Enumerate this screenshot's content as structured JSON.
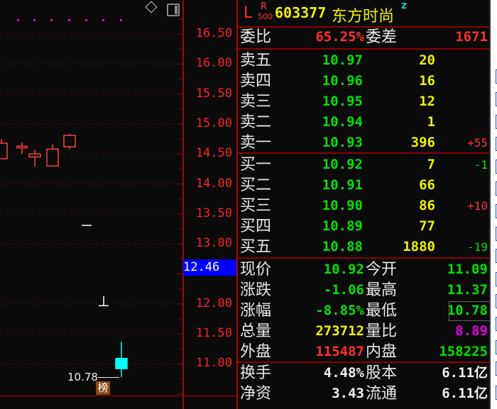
{
  "chart": {
    "y_ticks": [
      "16.50",
      "16.00",
      "15.50",
      "15.00",
      "14.50",
      "14.00",
      "13.50",
      "13.00",
      "12.00",
      "11.50",
      "11.00"
    ],
    "current_price_label": "12.46",
    "low_marker": "10.78",
    "badge": "榜",
    "candles": [
      {
        "open": 14.42,
        "close": 14.68,
        "high": 14.75,
        "low": 14.42,
        "color": "red",
        "hollow": true
      },
      {
        "open": 14.6,
        "close": 14.63,
        "high": 14.69,
        "low": 14.5,
        "color": "red",
        "hollow": true
      },
      {
        "open": 14.45,
        "close": 14.5,
        "high": 14.57,
        "low": 14.29,
        "color": "red",
        "hollow": true
      },
      {
        "open": 14.3,
        "close": 14.58,
        "high": 14.66,
        "low": 14.3,
        "color": "red",
        "hollow": true
      },
      {
        "open": 14.62,
        "close": 14.81,
        "high": 14.84,
        "low": 14.58,
        "color": "red",
        "hollow": true
      },
      {
        "open": 13.31,
        "close": 13.31,
        "high": 13.31,
        "low": 13.31,
        "color": "white"
      },
      {
        "open": 11.97,
        "close": 11.97,
        "high": 12.13,
        "low": 11.97,
        "color": "white"
      },
      {
        "open": 11.09,
        "close": 10.92,
        "high": 11.37,
        "low": 10.78,
        "color": "cyan"
      }
    ],
    "colors": {
      "up": "#ff4040",
      "down": "#00ffff",
      "grid": "#b00000",
      "dots": "#e000e0"
    }
  },
  "header": {
    "l": "L",
    "r": "R",
    "r_sub": "500",
    "code": "603377",
    "name": "东方时尚",
    "mark": "Z"
  },
  "ratio": {
    "label": "委比",
    "value": "65.25%",
    "label2": "委差",
    "value2": "1671"
  },
  "asks": [
    {
      "label": "卖五",
      "price": "10.97",
      "vol": "20",
      "chg": ""
    },
    {
      "label": "卖四",
      "price": "10.96",
      "vol": "16",
      "chg": ""
    },
    {
      "label": "卖三",
      "price": "10.95",
      "vol": "12",
      "chg": ""
    },
    {
      "label": "卖二",
      "price": "10.94",
      "vol": "1",
      "chg": ""
    },
    {
      "label": "卖一",
      "price": "10.93",
      "vol": "396",
      "chg": "+55",
      "chg_color": "r"
    }
  ],
  "bids": [
    {
      "label": "买一",
      "price": "10.92",
      "vol": "7",
      "chg": "-1",
      "chg_color": "g"
    },
    {
      "label": "买二",
      "price": "10.91",
      "vol": "66",
      "chg": ""
    },
    {
      "label": "买三",
      "price": "10.90",
      "vol": "86",
      "chg": "+10",
      "chg_color": "r"
    },
    {
      "label": "买四",
      "price": "10.89",
      "vol": "77",
      "chg": ""
    },
    {
      "label": "买五",
      "price": "10.88",
      "vol": "1880",
      "chg": "-19",
      "chg_color": "g"
    }
  ],
  "quote": [
    {
      "l1": "现价",
      "v1": "10.92",
      "c1": "g",
      "l2": "今开",
      "v2": "11.09",
      "c2": "g"
    },
    {
      "l1": "涨跌",
      "v1": "-1.06",
      "c1": "g",
      "l2": "最高",
      "v2": "11.37",
      "c2": "g"
    },
    {
      "l1": "涨幅",
      "v1": "-8.85%",
      "c1": "g",
      "l2": "最低",
      "v2": "10.78",
      "c2": "g"
    },
    {
      "l1": "总量",
      "v1": "273712",
      "c1": "y",
      "l2": "量比",
      "v2": "8.89",
      "c2": "m"
    },
    {
      "l1": "外盘",
      "v1": "115487",
      "c1": "r",
      "l2": "内盘",
      "v2": "158225",
      "c2": "g"
    }
  ],
  "fundamentals": [
    {
      "l1": "换手",
      "v1": "4.48%",
      "c1": "w",
      "l2": "股本",
      "v2": "6.11亿",
      "c2": "w"
    },
    {
      "l1": "净资",
      "v1": "3.43",
      "c1": "w",
      "l2": "流通",
      "v2": "6.11亿",
      "c2": "w"
    }
  ]
}
